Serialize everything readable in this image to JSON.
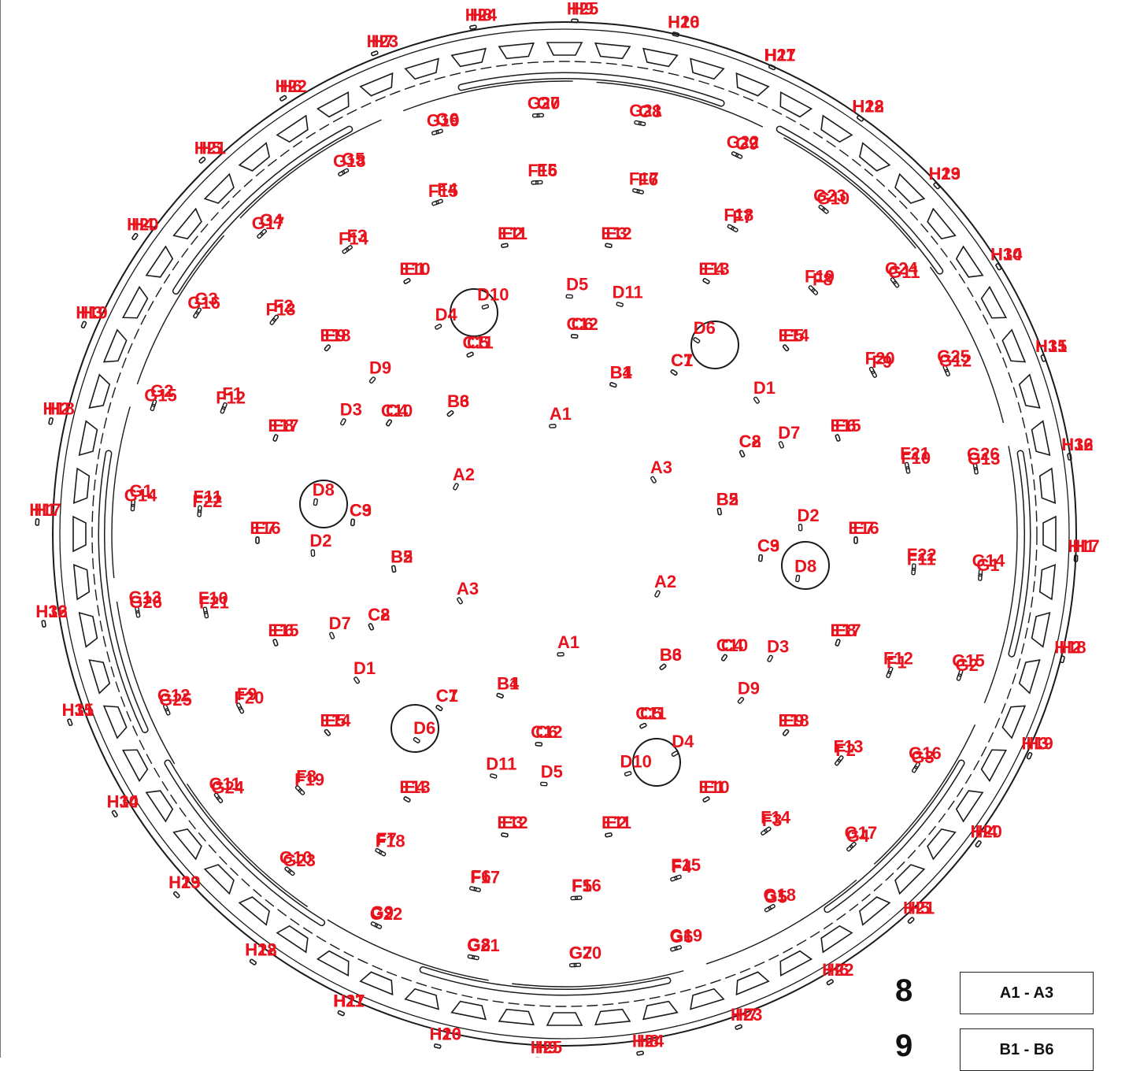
{
  "rings": {
    "A": {
      "outer": [
        "A1",
        "A2",
        "A3"
      ],
      "inner": [
        "A1",
        "A2",
        "A3"
      ]
    },
    "B": {
      "outer": [
        "B1",
        "B2",
        "B3",
        "B4",
        "B5",
        "B6"
      ],
      "inner": [
        "B1",
        "B2",
        "B3",
        "B4",
        "B5",
        "B6"
      ]
    },
    "C": {
      "outer": [
        "C1",
        "C2",
        "C3",
        "C4",
        "C5",
        "C6",
        "C7",
        "C8",
        "C9",
        "C10",
        "C11",
        "C12"
      ],
      "inner": [
        "C1",
        "C2",
        "C3",
        "C4",
        "C5",
        "C6",
        "C7",
        "C8",
        "C9",
        "C10",
        "C11",
        "C12"
      ]
    },
    "D": {
      "outer": [
        "D1",
        "D2",
        "D3",
        "D4",
        "D5",
        "D6",
        "D7",
        "D8",
        "D9",
        "D10",
        "D11"
      ],
      "inner": [
        "D1",
        "D2",
        "D3",
        "D4",
        "D5",
        "D6",
        "D7",
        "D8",
        "D9",
        "D10",
        "D11"
      ]
    },
    "E": {
      "outer": [
        "E1",
        "E2",
        "E3",
        "E4",
        "E5",
        "E6",
        "E7",
        "E8",
        "E9",
        "E10",
        "E11",
        "E12",
        "E13",
        "E14",
        "E15",
        "E16",
        "E17",
        "E18"
      ],
      "inner": [
        "E1",
        "E2",
        "E3",
        "E4",
        "E5",
        "E6",
        "E7",
        "E8",
        "E9",
        "E10",
        "E11",
        "E12",
        "E13",
        "E14",
        "E15",
        "E16",
        "E17",
        "E18"
      ]
    },
    "F": {
      "outer": [
        "F1",
        "F2",
        "F3",
        "F4",
        "F5",
        "F6",
        "F7",
        "F8",
        "F9",
        "F10",
        "F11",
        "F12",
        "F13",
        "F14",
        "F15",
        "F16",
        "F17",
        "F18",
        "F19",
        "F20",
        "F21",
        "F22"
      ],
      "inner": [
        "F1",
        "F2",
        "F3",
        "F4",
        "F5",
        "F6",
        "F7",
        "F8",
        "F9",
        "F10",
        "F11",
        "F12",
        "F13",
        "F14",
        "F15",
        "F16",
        "F17",
        "F18",
        "F19",
        "F20",
        "F21",
        "F22"
      ]
    },
    "G": {
      "outer": [
        "G1",
        "G2",
        "G3",
        "G4",
        "G5",
        "G6",
        "G7",
        "G8",
        "G9",
        "G10",
        "G11",
        "G12",
        "G13",
        "G14",
        "G15",
        "G16",
        "G17",
        "G18",
        "G19",
        "G20",
        "G21",
        "G22",
        "G23",
        "G24",
        "G25",
        "G26"
      ],
      "inner": [
        "G1",
        "G2",
        "G3",
        "G4",
        "G5",
        "G6",
        "G7",
        "G8",
        "G9",
        "G10",
        "G11",
        "G12",
        "G13",
        "G14",
        "G15",
        "G16",
        "G17",
        "G18",
        "G19",
        "G20",
        "G21",
        "G22",
        "G23",
        "G24",
        "G25",
        "G26"
      ]
    },
    "H": {
      "outer": [
        "H1",
        "H2",
        "H3",
        "H4",
        "H5",
        "H6",
        "H7",
        "H8",
        "H9",
        "H10",
        "H11",
        "H12",
        "H13",
        "H14",
        "H15",
        "H16",
        "H17",
        "H18",
        "H19",
        "H20",
        "H21",
        "H22",
        "H23",
        "H24",
        "H25",
        "H26",
        "H27",
        "H28",
        "H29",
        "H30",
        "H31",
        "H32"
      ],
      "inner": [
        "H1",
        "H2",
        "H3",
        "H4",
        "H5",
        "H6",
        "H7",
        "H8",
        "H9",
        "H10",
        "H11",
        "H12",
        "H13",
        "H14",
        "H15",
        "H16",
        "H17",
        "H18",
        "H19",
        "H20",
        "H21",
        "H22",
        "H23",
        "H24",
        "H25",
        "H26",
        "H27",
        "H28",
        "H29",
        "H30",
        "H31",
        "H32"
      ]
    }
  },
  "steps": [
    {
      "number": "8",
      "range": "A1 - A3"
    },
    {
      "number": "9",
      "range": "B1 - B6"
    }
  ],
  "colors": {
    "label": "#e8131d",
    "line": "#1a1a1a",
    "background": "#ffffff"
  }
}
